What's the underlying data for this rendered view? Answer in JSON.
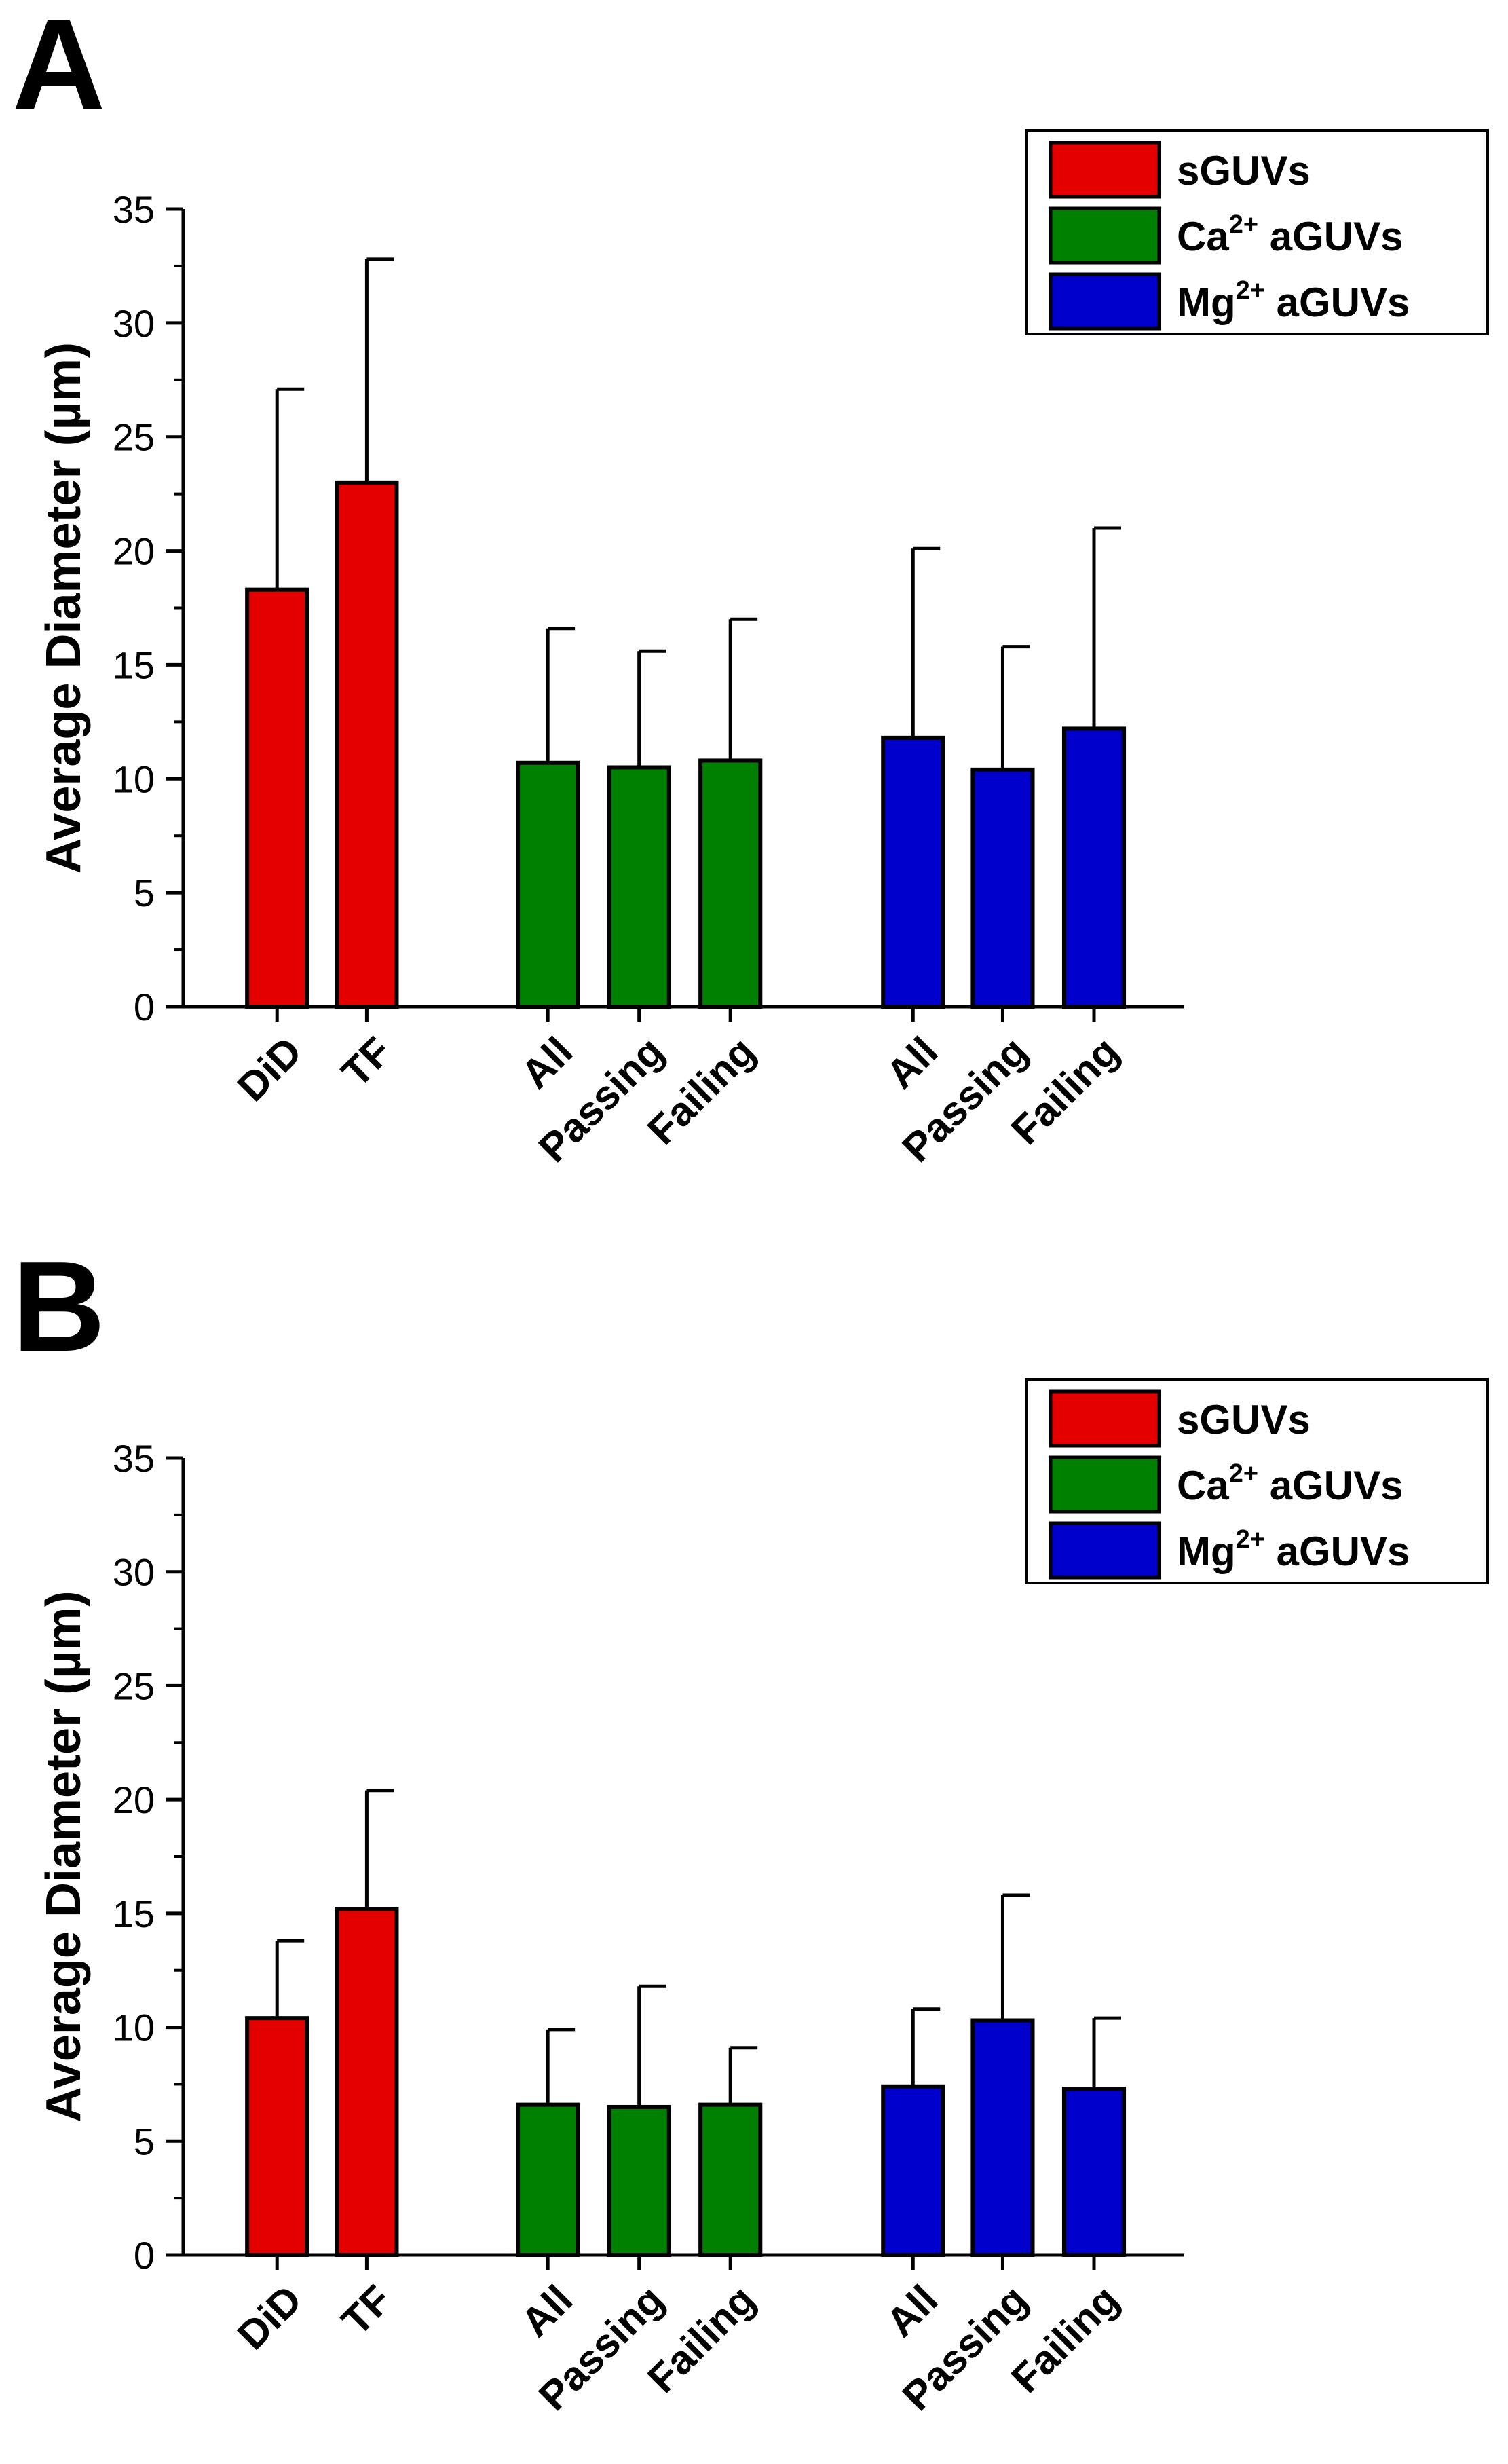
{
  "chart_data": [
    {
      "panel": "A",
      "type": "bar",
      "ylabel": "Average Diameter (µm)",
      "ylim": [
        0,
        35
      ],
      "yticks": [
        0,
        5,
        10,
        15,
        20,
        25,
        30,
        35
      ],
      "bars": [
        {
          "group": "sGUVs",
          "label": "DiD",
          "value": 18.3,
          "error": 8.8
        },
        {
          "group": "sGUVs",
          "label": "TF",
          "value": 23.0,
          "error": 9.8
        },
        {
          "group": "Ca2+ aGUVs",
          "label": "All",
          "value": 10.7,
          "error": 5.9
        },
        {
          "group": "Ca2+ aGUVs",
          "label": "Passing",
          "value": 10.5,
          "error": 5.1
        },
        {
          "group": "Ca2+ aGUVs",
          "label": "Failing",
          "value": 10.8,
          "error": 6.2
        },
        {
          "group": "Mg2+ aGUVs",
          "label": "All",
          "value": 11.8,
          "error": 8.3
        },
        {
          "group": "Mg2+ aGUVs",
          "label": "Passing",
          "value": 10.4,
          "error": 5.4
        },
        {
          "group": "Mg2+ aGUVs",
          "label": "Failing",
          "value": 12.2,
          "error": 8.8
        }
      ],
      "legend": [
        {
          "label": "sGUVs",
          "sup": "",
          "suffix": "",
          "color": "#e50000"
        },
        {
          "label": "Ca",
          "sup": "2+",
          "suffix": " aGUVs",
          "color": "#008000"
        },
        {
          "label": "Mg",
          "sup": "2+",
          "suffix": " aGUVs",
          "color": "#0000cc"
        }
      ]
    },
    {
      "panel": "B",
      "type": "bar",
      "ylabel": "Average Diameter (µm)",
      "ylim": [
        0,
        35
      ],
      "yticks": [
        0,
        5,
        10,
        15,
        20,
        25,
        30,
        35
      ],
      "bars": [
        {
          "group": "sGUVs",
          "label": "DiD",
          "value": 10.4,
          "error": 3.4
        },
        {
          "group": "sGUVs",
          "label": "TF",
          "value": 15.2,
          "error": 5.2
        },
        {
          "group": "Ca2+ aGUVs",
          "label": "All",
          "value": 6.6,
          "error": 3.3
        },
        {
          "group": "Ca2+ aGUVs",
          "label": "Passing",
          "value": 6.5,
          "error": 5.3
        },
        {
          "group": "Ca2+ aGUVs",
          "label": "Failing",
          "value": 6.6,
          "error": 2.5
        },
        {
          "group": "Mg2+ aGUVs",
          "label": "All",
          "value": 7.4,
          "error": 3.4
        },
        {
          "group": "Mg2+ aGUVs",
          "label": "Passing",
          "value": 10.3,
          "error": 5.5
        },
        {
          "group": "Mg2+ aGUVs",
          "label": "Failing",
          "value": 7.3,
          "error": 3.1
        }
      ],
      "legend": [
        {
          "label": "sGUVs",
          "sup": "",
          "suffix": "",
          "color": "#e50000"
        },
        {
          "label": "Ca",
          "sup": "2+",
          "suffix": " aGUVs",
          "color": "#008000"
        },
        {
          "label": "Mg",
          "sup": "2+",
          "suffix": " aGUVs",
          "color": "#0000cc"
        }
      ]
    }
  ]
}
